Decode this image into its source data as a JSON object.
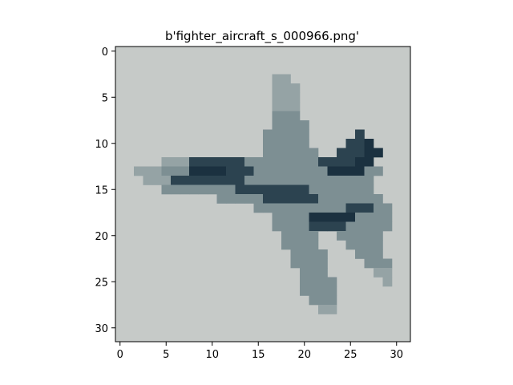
{
  "figure": {
    "title": "b'fighter_aircraft_s_000966.png'",
    "x_ticks": [
      {
        "value": 0,
        "label": "0"
      },
      {
        "value": 5,
        "label": "5"
      },
      {
        "value": 10,
        "label": "10"
      },
      {
        "value": 15,
        "label": "15"
      },
      {
        "value": 20,
        "label": "20"
      },
      {
        "value": 25,
        "label": "25"
      },
      {
        "value": 30,
        "label": "30"
      }
    ],
    "y_ticks": [
      {
        "value": 0,
        "label": "0"
      },
      {
        "value": 5,
        "label": "5"
      },
      {
        "value": 10,
        "label": "10"
      },
      {
        "value": 15,
        "label": "15"
      },
      {
        "value": 20,
        "label": "20"
      },
      {
        "value": 25,
        "label": "25"
      },
      {
        "value": 30,
        "label": "30"
      }
    ],
    "image_grid": {
      "cols": 32,
      "rows": 32
    },
    "colors": {
      "background": "#c6cac8",
      "body": "#7d8f93",
      "body_light": "#95a3a5",
      "dark": "#2c4350",
      "darkest": "#1b3140",
      "axis": "#000000"
    },
    "content": "pixelated photo of a fighter jet, nose pointing left, wings swept toward the lower right"
  }
}
